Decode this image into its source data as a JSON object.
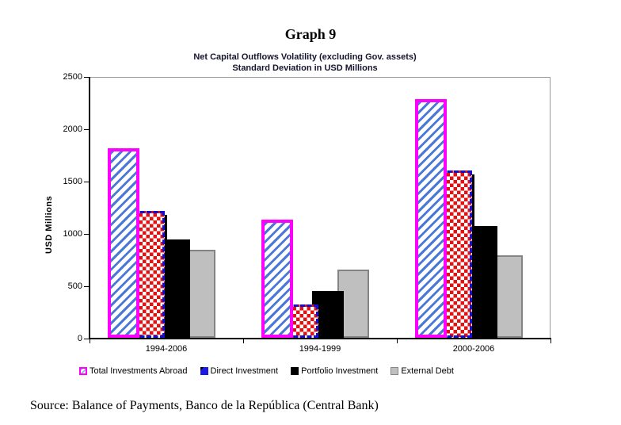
{
  "page": {
    "title": "Graph 9",
    "source": "Source: Balance of Payments, Banco de la República (Central Bank)"
  },
  "chart_data": {
    "type": "bar",
    "title": "Net Capital Outflows Volatility (excluding Gov. assets)",
    "subtitle": "Standard Deviation in USD Millions",
    "ylabel": "USD Millions",
    "ylim": [
      0,
      2500
    ],
    "ytick_step": 500,
    "ytick_labels": [
      "0",
      "500",
      "1000",
      "1500",
      "2000",
      "2500"
    ],
    "grid": false,
    "legend_position": "bottom",
    "categories": [
      "1994-2006",
      "1994-1999",
      "2000-2006"
    ],
    "series": [
      {
        "name": "Total Investments Abroad",
        "style": "magenta-outline-blue-hatch",
        "border_color": "#ff00ff",
        "hatch_color": "#4a78d8",
        "values": [
          1810,
          1130,
          2280
        ]
      },
      {
        "name": "Direct Investment",
        "style": "blue-dash-outline-red-diamonds",
        "border_color": "#0f0fd8",
        "pattern_color": "#e31212",
        "values": [
          1210,
          320,
          1600
        ]
      },
      {
        "name": "Portfolio Investment",
        "style": "solid-black",
        "fill_color": "#000000",
        "values": [
          940,
          445,
          1070
        ]
      },
      {
        "name": "External Debt",
        "style": "solid-gray",
        "fill_color": "#bfbfbf",
        "border_color": "#848484",
        "values": [
          840,
          650,
          790
        ]
      }
    ]
  }
}
